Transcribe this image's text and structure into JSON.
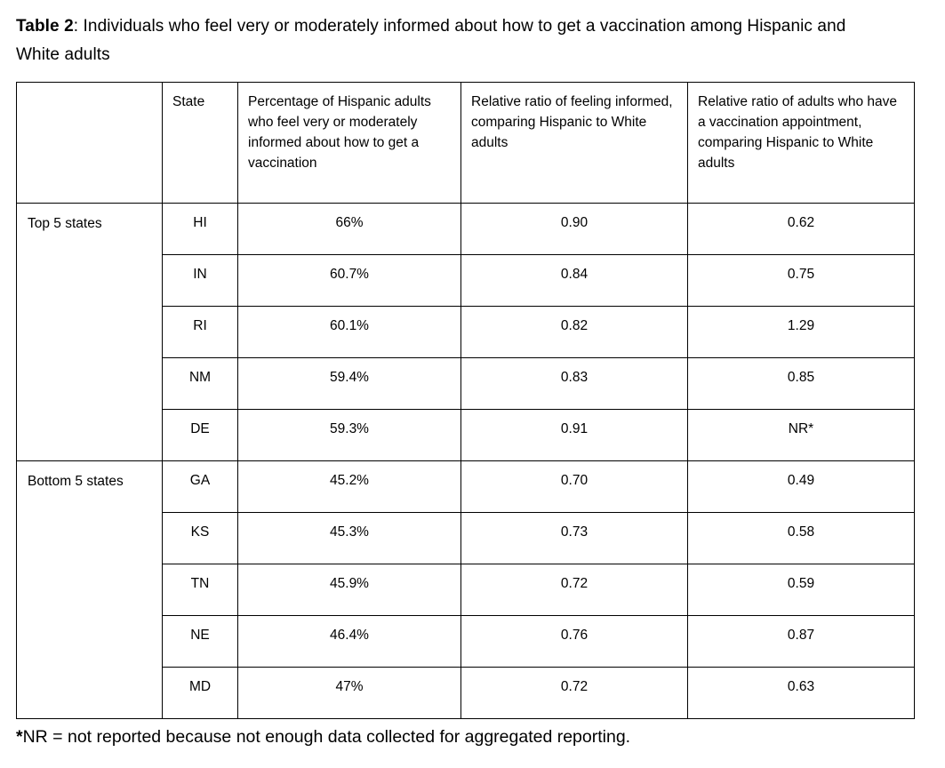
{
  "caption": {
    "label": "Table 2",
    "text": ": Individuals who feel very or moderately informed about how to get a vaccination among Hispanic and White adults"
  },
  "table": {
    "columns": {
      "group": "",
      "state": "State",
      "percentage": "Percentage of Hispanic adults who feel very or moderately informed about how to get a vaccination",
      "ratio_informed": "Relative ratio of feeling informed, comparing Hispanic to White adults",
      "ratio_appointment": "Relative ratio of adults who have a vaccination appointment, comparing Hispanic to White adults"
    },
    "groups": [
      {
        "label": "Top 5 states",
        "rows": [
          {
            "state": "HI",
            "percentage": "66%",
            "ratio_informed": "0.90",
            "ratio_appointment": "0.62"
          },
          {
            "state": "IN",
            "percentage": "60.7%",
            "ratio_informed": "0.84",
            "ratio_appointment": "0.75"
          },
          {
            "state": "RI",
            "percentage": "60.1%",
            "ratio_informed": "0.82",
            "ratio_appointment": "1.29"
          },
          {
            "state": "NM",
            "percentage": "59.4%",
            "ratio_informed": "0.83",
            "ratio_appointment": "0.85"
          },
          {
            "state": "DE",
            "percentage": "59.3%",
            "ratio_informed": "0.91",
            "ratio_appointment": "NR*"
          }
        ]
      },
      {
        "label": "Bottom 5 states",
        "rows": [
          {
            "state": "GA",
            "percentage": "45.2%",
            "ratio_informed": "0.70",
            "ratio_appointment": "0.49"
          },
          {
            "state": "KS",
            "percentage": "45.3%",
            "ratio_informed": "0.73",
            "ratio_appointment": "0.58"
          },
          {
            "state": "TN",
            "percentage": "45.9%",
            "ratio_informed": "0.72",
            "ratio_appointment": "0.59"
          },
          {
            "state": "NE",
            "percentage": "46.4%",
            "ratio_informed": "0.76",
            "ratio_appointment": "0.87"
          },
          {
            "state": "MD",
            "percentage": "47%",
            "ratio_informed": "0.72",
            "ratio_appointment": "0.63"
          }
        ]
      }
    ]
  },
  "footnote": {
    "marker": "*",
    "text": "NR = not reported because not enough data collected for aggregated reporting."
  }
}
